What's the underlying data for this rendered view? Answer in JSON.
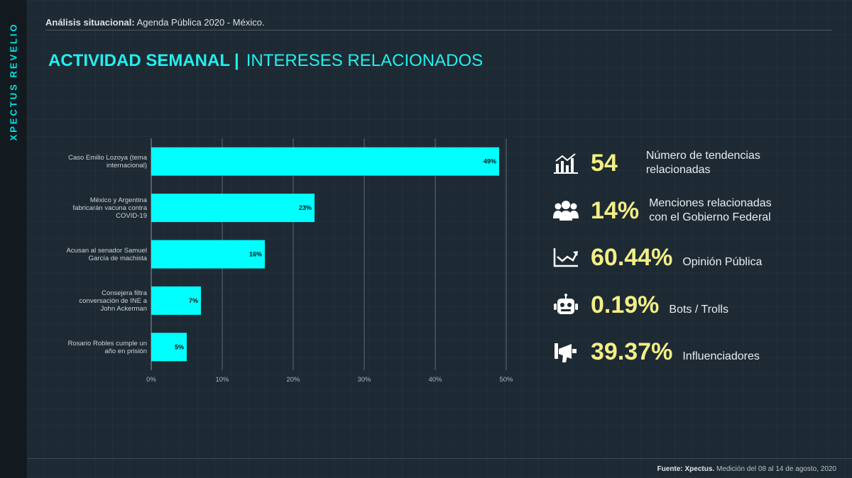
{
  "sidebar": {
    "brand": "XPECTUS REVELIO"
  },
  "header": {
    "label": "Análisis situacional:",
    "text": "Agenda Pública 2020 - México."
  },
  "title": {
    "bold": "ACTIVIDAD SEMANAL",
    "separator": "|",
    "light": "INTERESES RELACIONADOS"
  },
  "chart_data": {
    "type": "bar",
    "orientation": "horizontal",
    "categories": [
      [
        "Caso Emilio Lozoya (tema",
        "internacional)"
      ],
      [
        "México y Argentina",
        "fabricarán vacuna contra",
        "COVID-19"
      ],
      [
        "Acusan al senador Samuel",
        "García de machista"
      ],
      [
        "Consejera filtra",
        "conversación de INE a",
        "John Ackerman"
      ],
      [
        "Rosario Robles cumple un",
        "año en prisión"
      ]
    ],
    "values": [
      49,
      23,
      16,
      7,
      5
    ],
    "data_labels": [
      "49%",
      "23%",
      "16%",
      "7%",
      "5%"
    ],
    "xlim": [
      0,
      50
    ],
    "ticks": [
      "0%",
      "10%",
      "20%",
      "30%",
      "40%",
      "50%"
    ],
    "grid": true,
    "bar_color": "#00ffff"
  },
  "kpis": [
    {
      "icon": "bar-chart-icon",
      "value": "54",
      "label": "Número de tendencias relacionadas"
    },
    {
      "icon": "users-icon",
      "value": "14%",
      "label": "Menciones relacionadas con el Gobierno Federal"
    },
    {
      "icon": "trend-icon",
      "value": "60.44%",
      "label": "Opinión Pública"
    },
    {
      "icon": "robot-icon",
      "value": "0.19%",
      "label": "Bots / Trolls"
    },
    {
      "icon": "megaphone-icon",
      "value": "39.37%",
      "label": "Influenciadores"
    }
  ],
  "footer": {
    "label": "Fuente: Xpectus.",
    "text": "Medición del 08 al 14 de agosto, 2020"
  },
  "colors": {
    "accent": "#1ff0f0",
    "kpi_value": "#f3ef86",
    "background": "#1e2a33"
  }
}
